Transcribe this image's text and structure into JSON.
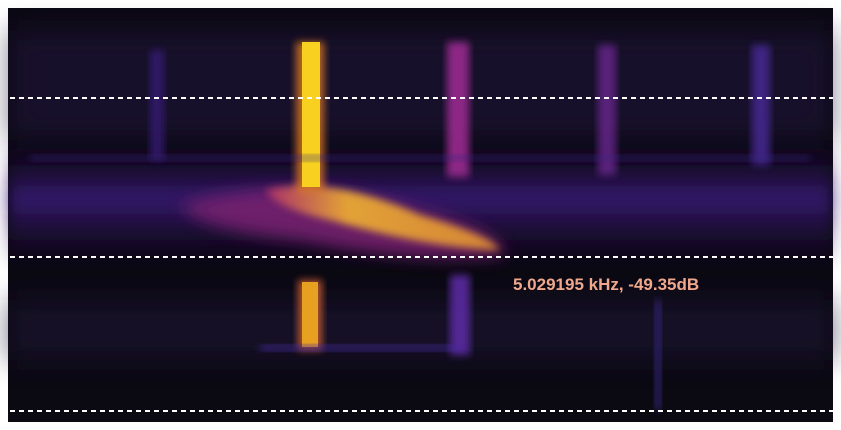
{
  "readout": "5.029195 kHz, -49.35dB"
}
